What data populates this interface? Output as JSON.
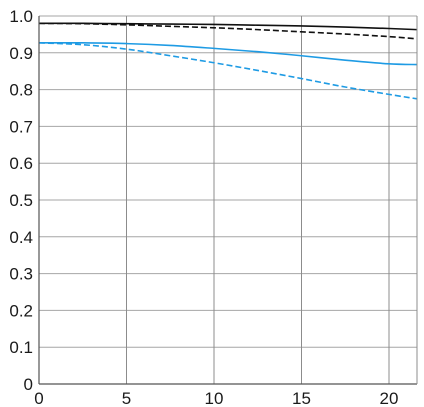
{
  "chart_data": {
    "type": "line",
    "title": "",
    "xlabel": "",
    "ylabel": "",
    "xlim": [
      0,
      21.6
    ],
    "ylim": [
      0,
      1.0
    ],
    "x_ticks": [
      0,
      5,
      10,
      15,
      20
    ],
    "y_ticks": [
      0,
      0.1,
      0.2,
      0.3,
      0.4,
      0.5,
      0.6,
      0.7,
      0.8,
      0.9,
      1.0
    ],
    "x_tick_labels": [
      "0",
      "5",
      "10",
      "15",
      "20"
    ],
    "y_tick_labels": [
      "0",
      "0.1",
      "0.2",
      "0.3",
      "0.4",
      "0.5",
      "0.6",
      "0.7",
      "0.8",
      "0.9",
      "1.0"
    ],
    "grid": true,
    "legend": "none",
    "series": [
      {
        "color": "#111111",
        "dash": "solid",
        "x": [
          0,
          2.5,
          5,
          7.5,
          10,
          12.5,
          15,
          17.5,
          20,
          21.6
        ],
        "y": [
          0.98,
          0.98,
          0.979,
          0.978,
          0.977,
          0.975,
          0.973,
          0.97,
          0.966,
          0.963
        ]
      },
      {
        "color": "#111111",
        "dash": "dashed",
        "x": [
          0,
          2.5,
          5,
          7.5,
          10,
          12.5,
          15,
          17.5,
          20,
          21.6
        ],
        "y": [
          0.98,
          0.979,
          0.976,
          0.972,
          0.968,
          0.963,
          0.957,
          0.951,
          0.944,
          0.938
        ]
      },
      {
        "color": "#1e9be4",
        "dash": "solid",
        "x": [
          0,
          2.5,
          5,
          7.5,
          10,
          12.5,
          15,
          17.5,
          20,
          21.6
        ],
        "y": [
          0.927,
          0.927,
          0.925,
          0.92,
          0.912,
          0.903,
          0.892,
          0.88,
          0.87,
          0.868
        ]
      },
      {
        "color": "#1e9be4",
        "dash": "dashed",
        "x": [
          0,
          2.5,
          5,
          7.5,
          10,
          12.5,
          15,
          17.5,
          20,
          21.6
        ],
        "y": [
          0.927,
          0.922,
          0.91,
          0.892,
          0.873,
          0.852,
          0.83,
          0.807,
          0.787,
          0.775
        ]
      }
    ]
  }
}
